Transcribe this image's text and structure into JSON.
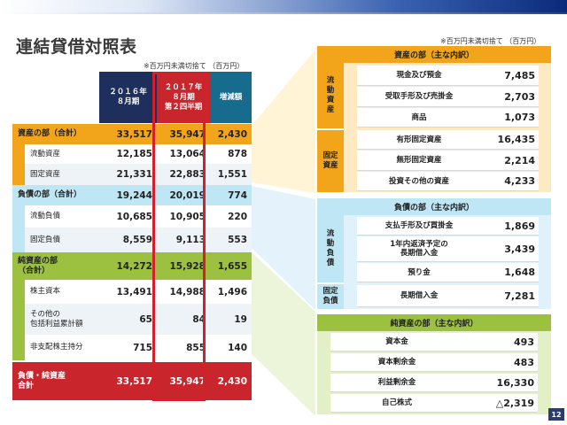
{
  "title": "連結貸借対照表",
  "unit_note_left": "※百万円未満切捨て （百万円）",
  "unit_note_right": "※百万円未満切捨て （百万円）",
  "page_number": "12",
  "columns": {
    "c1": "２０１６年\n８月期",
    "c2": "２０１７年\n８月期\n第２四半期",
    "c3": "増減額"
  },
  "left_rows": [
    {
      "label": "資産の部（合計）",
      "v1": "33,517",
      "v2": "35,947",
      "v3": "2,430"
    },
    {
      "label": "流動資産",
      "v1": "12,185",
      "v2": "13,064",
      "v3": "878"
    },
    {
      "label": "固定資産",
      "v1": "21,331",
      "v2": "22,883",
      "v3": "1,551"
    },
    {
      "label": "負債の部（合計）",
      "v1": "19,244",
      "v2": "20,019",
      "v3": "774"
    },
    {
      "label": "流動負債",
      "v1": "10,685",
      "v2": "10,905",
      "v3": "220"
    },
    {
      "label": "固定負債",
      "v1": "8,559",
      "v2": "9,113",
      "v3": "553"
    },
    {
      "label": "純資産の部\n（合計）",
      "v1": "14,272",
      "v2": "15,928",
      "v3": "1,655"
    },
    {
      "label": "株主資本",
      "v1": "13,491",
      "v2": "14,988",
      "v3": "1,496"
    },
    {
      "label": "その他の\n包括利益累計額",
      "v1": "65",
      "v2": "84",
      "v3": "19"
    },
    {
      "label": "非支配株主持分",
      "v1": "715",
      "v2": "855",
      "v3": "140"
    },
    {
      "label": "負債・純資産\n合計",
      "v1": "33,517",
      "v2": "35,947",
      "v3": "2,430"
    }
  ],
  "assets_detail": {
    "header": "資産の部（主な内訳）",
    "cat1": "流動資産",
    "cat2": "固定資産",
    "rows": [
      {
        "label": "現金及び預金",
        "value": "7,485"
      },
      {
        "label": "受取手形及び売掛金",
        "value": "2,703"
      },
      {
        "label": "商品",
        "value": "1,073"
      },
      {
        "label": "有形固定資産",
        "value": "16,435"
      },
      {
        "label": "無形固定資産",
        "value": "2,214"
      },
      {
        "label": "投資その他の資産",
        "value": "4,233"
      }
    ]
  },
  "liabilities_detail": {
    "header": "負債の部（主な内訳）",
    "cat1": "流動負債",
    "cat2": "固定負債",
    "rows": [
      {
        "label": "支払手形及び買掛金",
        "value": "1,869"
      },
      {
        "label": "1年内返済予定の\n長期借入金",
        "value": "3,439"
      },
      {
        "label": "預り金",
        "value": "1,648"
      },
      {
        "label": "長期借入金",
        "value": "7,281"
      }
    ]
  },
  "equity_detail": {
    "header": "純資産の部（主な内訳）",
    "rows": [
      {
        "label": "資本金",
        "value": "493"
      },
      {
        "label": "資本剰余金",
        "value": "483"
      },
      {
        "label": "利益剰余金",
        "value": "16,330"
      },
      {
        "label": "自己株式",
        "value": "△2,319"
      }
    ]
  },
  "colors": {
    "orange": "#f2a51b",
    "blue": "#bfe6f4",
    "green": "#9cc140",
    "red": "#c8252d",
    "navy": "#1e2f5e",
    "teal": "#176b8c"
  }
}
